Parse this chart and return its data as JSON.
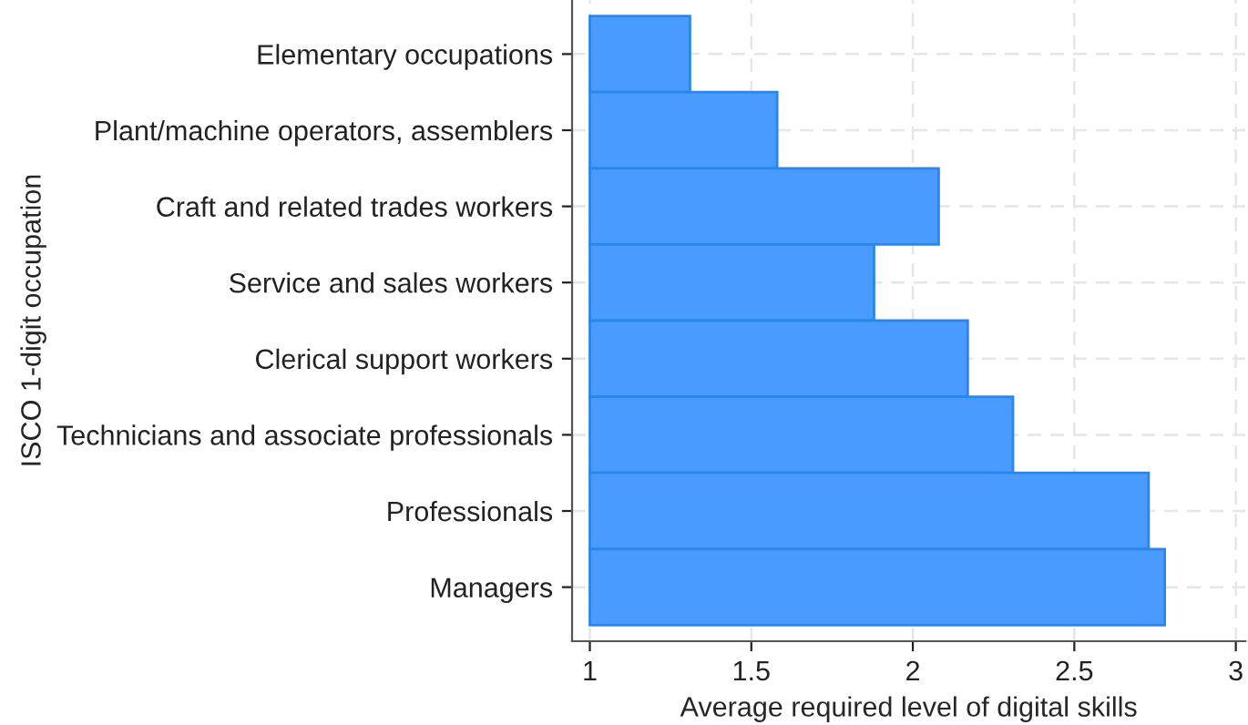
{
  "chart_data": {
    "type": "bar",
    "orientation": "horizontal",
    "xlabel": "Average required level of digital skills",
    "ylabel": "ISCO 1-digit occupation",
    "categories": [
      "Elementary occupations",
      "Plant/machine operators, assemblers",
      "Craft and related trades workers",
      "Service and sales workers",
      "Clerical support workers",
      "Technicians and associate professionals",
      "Professionals",
      "Managers"
    ],
    "base": [
      1,
      1,
      1,
      1,
      1,
      1,
      1,
      1
    ],
    "values": [
      0.31,
      0.58,
      1.08,
      0.88,
      1.17,
      1.31,
      1.73,
      1.78
    ],
    "color": "#4a9bff",
    "xlim": [
      0.945,
      3.03
    ],
    "xticks": [
      1,
      1.5,
      2,
      2.5,
      3
    ],
    "grid": true
  }
}
